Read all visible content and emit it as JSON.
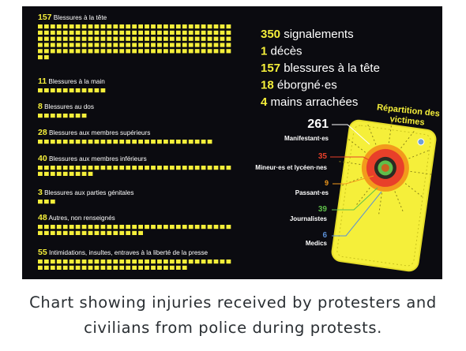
{
  "colors": {
    "background": "#0b0b10",
    "accent": "#f5ef3a",
    "text": "#ffffff",
    "red": "#e8402a",
    "orange": "#f39a1c",
    "green": "#5fbf4a",
    "blue": "#5a8fd6",
    "caption": "#2a2f33"
  },
  "caption": {
    "line1": "Chart showing injuries received by protesters and",
    "line2": "civilians from police during protests."
  },
  "chart_data": [
    {
      "type": "pictograph",
      "unit": "one square per case",
      "categories": [
        {
          "value": 157,
          "label": "Blessures à la tête"
        },
        {
          "value": 11,
          "label": "Blessures à la main"
        },
        {
          "value": 8,
          "label": "Blessures au dos"
        },
        {
          "value": 28,
          "label": "Blessures aux membres supérieurs"
        },
        {
          "value": 40,
          "label": "Blessures aux membres inférieurs"
        },
        {
          "value": 3,
          "label": "Blessures aux parties génitales"
        },
        {
          "value": 48,
          "label": "Autres, non renseignés"
        },
        {
          "value": 55,
          "label": "Intimidations, insultes, entraves à la liberté de la presse"
        }
      ]
    },
    {
      "type": "summary",
      "items": [
        {
          "value": "350",
          "label": "signalements"
        },
        {
          "value": "1",
          "label": "décès"
        },
        {
          "value": "157",
          "label": "blessures à la tête"
        },
        {
          "value": "18",
          "label": "éborgné·es"
        },
        {
          "value": "4",
          "label": "mains arrachées"
        }
      ]
    },
    {
      "type": "breakdown",
      "title": "Répartition des victimes",
      "items": [
        {
          "value": 261,
          "label": "Manifestant·es",
          "color": "#ffffff"
        },
        {
          "value": 35,
          "label": "Mineur·es et lycéen·nes",
          "color": "#e8402a"
        },
        {
          "value": 9,
          "label": "Passant·es",
          "color": "#f39a1c"
        },
        {
          "value": 39,
          "label": "Journalistes",
          "color": "#5fbf4a"
        },
        {
          "value": 6,
          "label": "Medics",
          "color": "#5a8fd6"
        }
      ]
    }
  ]
}
